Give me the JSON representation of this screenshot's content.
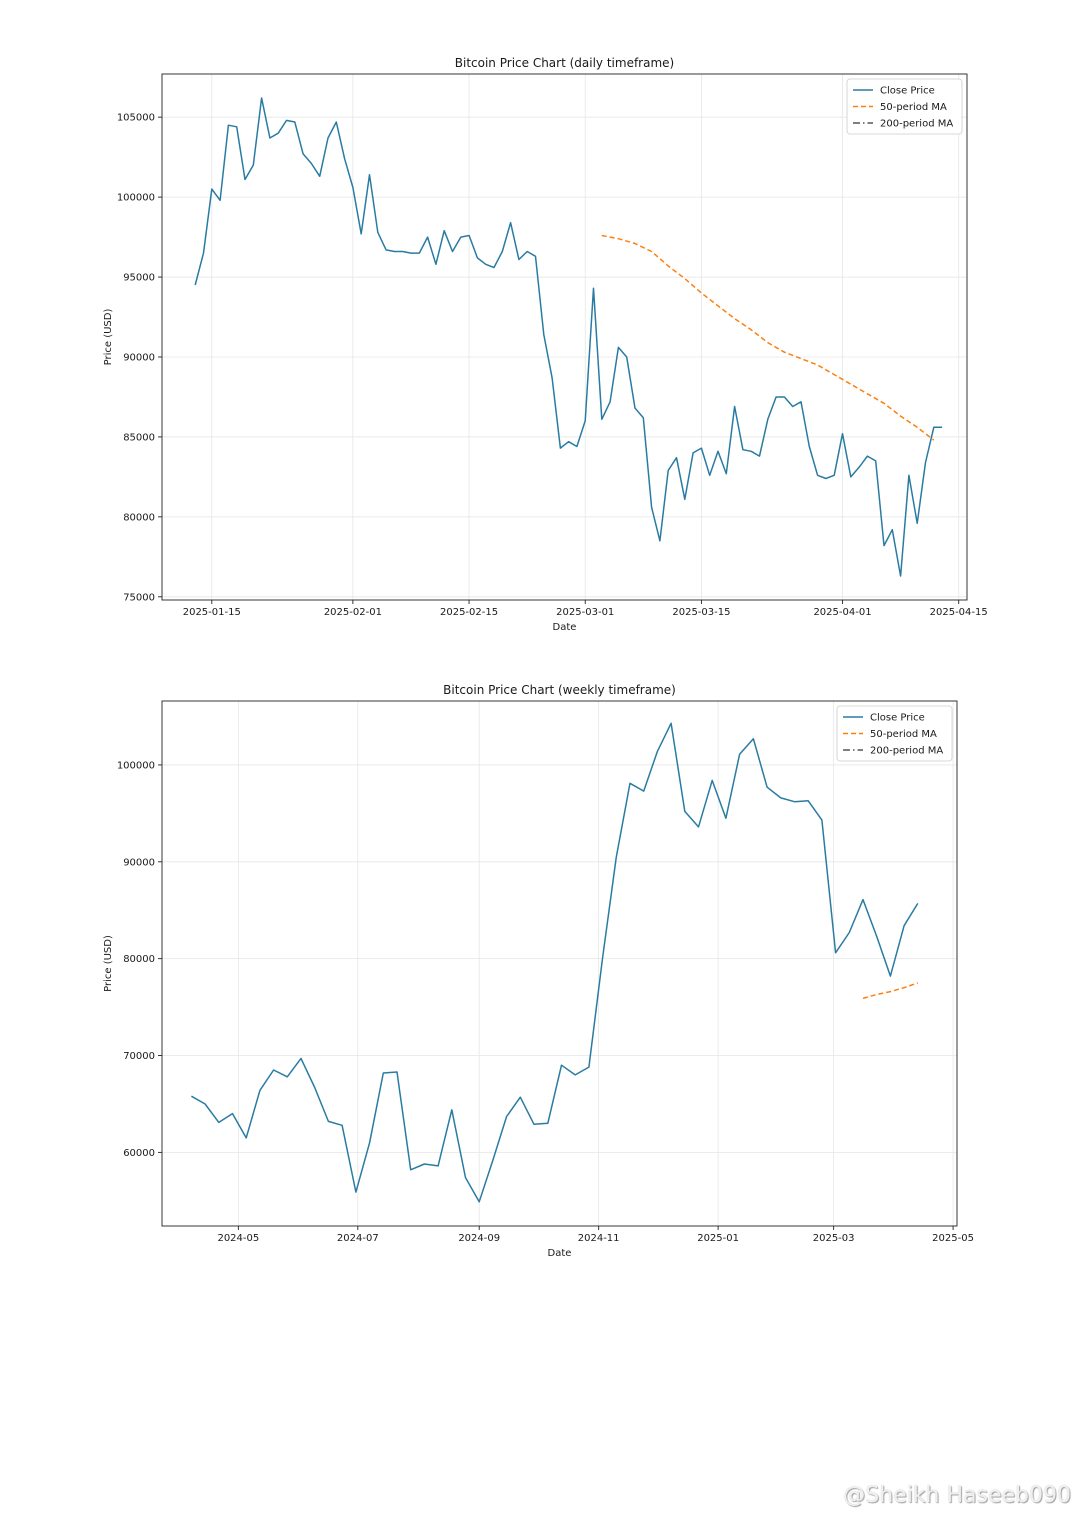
{
  "watermark": "@Sheikh Haseeb090",
  "legend_labels": [
    "Close Price",
    "50-period MA",
    "200-period MA"
  ],
  "colors": {
    "close": "#2a7ba2",
    "ma50": "#ff7f0e",
    "ma200": "#555555",
    "grid": "#e6e6e6"
  },
  "chart_data": [
    {
      "type": "line",
      "title": "Bitcoin Price Chart (daily timeframe)",
      "xlabel": "Date",
      "ylabel": "Price (USD)",
      "grid": true,
      "legend_position": "top-right",
      "x_type": "date",
      "xlim": [
        "2025-01-09",
        "2025-04-16"
      ],
      "ylim": [
        74800,
        107700
      ],
      "xticks": [
        "2025-01-15",
        "2025-02-01",
        "2025-02-15",
        "2025-03-01",
        "2025-03-15",
        "2025-04-01",
        "2025-04-15"
      ],
      "yticks": [
        75000,
        80000,
        85000,
        90000,
        95000,
        100000,
        105000
      ],
      "series": [
        {
          "name": "Close Price",
          "style": "solid",
          "x": [
            "2025-01-13",
            "2025-01-14",
            "2025-01-15",
            "2025-01-16",
            "2025-01-17",
            "2025-01-18",
            "2025-01-19",
            "2025-01-20",
            "2025-01-21",
            "2025-01-22",
            "2025-01-23",
            "2025-01-24",
            "2025-01-25",
            "2025-01-26",
            "2025-01-27",
            "2025-01-28",
            "2025-01-29",
            "2025-01-30",
            "2025-01-31",
            "2025-02-01",
            "2025-02-02",
            "2025-02-03",
            "2025-02-04",
            "2025-02-05",
            "2025-02-06",
            "2025-02-07",
            "2025-02-08",
            "2025-02-09",
            "2025-02-10",
            "2025-02-11",
            "2025-02-12",
            "2025-02-13",
            "2025-02-14",
            "2025-02-15",
            "2025-02-16",
            "2025-02-17",
            "2025-02-18",
            "2025-02-19",
            "2025-02-20",
            "2025-02-21",
            "2025-02-22",
            "2025-02-23",
            "2025-02-24",
            "2025-02-25",
            "2025-02-26",
            "2025-02-27",
            "2025-02-28",
            "2025-03-01",
            "2025-03-02",
            "2025-03-03",
            "2025-03-04",
            "2025-03-05",
            "2025-03-06",
            "2025-03-07",
            "2025-03-08",
            "2025-03-09",
            "2025-03-10",
            "2025-03-11",
            "2025-03-12",
            "2025-03-13",
            "2025-03-14",
            "2025-03-15",
            "2025-03-16",
            "2025-03-17",
            "2025-03-18",
            "2025-03-19",
            "2025-03-20",
            "2025-03-21",
            "2025-03-22",
            "2025-03-23",
            "2025-03-24",
            "2025-03-25",
            "2025-03-26",
            "2025-03-27",
            "2025-03-28",
            "2025-03-29",
            "2025-03-30",
            "2025-03-31",
            "2025-04-01",
            "2025-04-02",
            "2025-04-03",
            "2025-04-04",
            "2025-04-05",
            "2025-04-06",
            "2025-04-07",
            "2025-04-08",
            "2025-04-09",
            "2025-04-10",
            "2025-04-11",
            "2025-04-12",
            "2025-04-13"
          ],
          "values": [
            94500,
            96500,
            100500,
            99800,
            104500,
            104400,
            101100,
            102000,
            106200,
            103700,
            104000,
            104800,
            104700,
            102700,
            102100,
            101300,
            103700,
            104700,
            102400,
            100600,
            97700,
            101400,
            97800,
            96700,
            96600,
            96600,
            96500,
            96500,
            97500,
            95800,
            97900,
            96600,
            97500,
            97600,
            96200,
            95800,
            95600,
            96600,
            98400,
            96100,
            96600,
            96300,
            91400,
            88700,
            84300,
            84700,
            84400,
            86000,
            94300,
            86100,
            87200,
            90600,
            90000,
            86800,
            86200,
            80600,
            78500,
            82900,
            83700,
            81100,
            84000,
            84300,
            82600,
            84100,
            82700,
            86900,
            84200,
            84100,
            83800,
            86100,
            87500,
            87500,
            86900,
            87200,
            84400,
            82600,
            82400,
            82600,
            85200,
            82500,
            83100,
            83800,
            83500,
            78200,
            79200,
            76300,
            82600,
            79600,
            83400,
            85600,
            85600
          ]
        },
        {
          "name": "50-period MA",
          "style": "dashed",
          "x": [
            "2025-03-03",
            "2025-03-05",
            "2025-03-07",
            "2025-03-09",
            "2025-03-11",
            "2025-03-13",
            "2025-03-15",
            "2025-03-17",
            "2025-03-19",
            "2025-03-21",
            "2025-03-23",
            "2025-03-25",
            "2025-03-27",
            "2025-03-29",
            "2025-03-31",
            "2025-04-02",
            "2025-04-04",
            "2025-04-06",
            "2025-04-08",
            "2025-04-10",
            "2025-04-12"
          ],
          "values": [
            97600,
            97400,
            97100,
            96600,
            95700,
            94900,
            94000,
            93200,
            92400,
            91700,
            90900,
            90300,
            89900,
            89500,
            88900,
            88300,
            87700,
            87100,
            86300,
            85600,
            84800
          ]
        },
        {
          "name": "200-period MA",
          "style": "dashdot",
          "x": [],
          "values": []
        }
      ]
    },
    {
      "type": "line",
      "title": "Bitcoin Price Chart (weekly timeframe)",
      "xlabel": "Date",
      "ylabel": "Price (USD)",
      "grid": true,
      "legend_position": "top-right",
      "x_type": "date",
      "xlim": [
        "2024-03-23",
        "2025-05-03"
      ],
      "ylim": [
        52400,
        106600
      ],
      "xticks": [
        "2024-05",
        "2024-07",
        "2024-09",
        "2024-11",
        "2025-01",
        "2025-03",
        "2025-05"
      ],
      "yticks": [
        60000,
        70000,
        80000,
        90000,
        100000
      ],
      "series": [
        {
          "name": "Close Price",
          "style": "solid",
          "x": [
            "2024-04-07",
            "2024-04-14",
            "2024-04-21",
            "2024-04-28",
            "2024-05-05",
            "2024-05-12",
            "2024-05-19",
            "2024-05-26",
            "2024-06-02",
            "2024-06-09",
            "2024-06-16",
            "2024-06-23",
            "2024-06-30",
            "2024-07-07",
            "2024-07-14",
            "2024-07-21",
            "2024-07-28",
            "2024-08-04",
            "2024-08-11",
            "2024-08-18",
            "2024-08-25",
            "2024-09-01",
            "2024-09-08",
            "2024-09-15",
            "2024-09-22",
            "2024-09-29",
            "2024-10-06",
            "2024-10-13",
            "2024-10-20",
            "2024-10-27",
            "2024-11-03",
            "2024-11-10",
            "2024-11-17",
            "2024-11-24",
            "2024-12-01",
            "2024-12-08",
            "2024-12-15",
            "2024-12-22",
            "2024-12-29",
            "2025-01-05",
            "2025-01-12",
            "2025-01-19",
            "2025-01-26",
            "2025-02-02",
            "2025-02-09",
            "2025-02-16",
            "2025-02-23",
            "2025-03-02",
            "2025-03-09",
            "2025-03-16",
            "2025-03-23",
            "2025-03-30",
            "2025-04-06",
            "2025-04-13"
          ],
          "values": [
            65800,
            65000,
            63100,
            64000,
            61500,
            66400,
            68500,
            67800,
            69700,
            66700,
            63200,
            62800,
            55900,
            61000,
            68200,
            68300,
            58200,
            58800,
            58600,
            64400,
            57400,
            54900,
            59200,
            63700,
            65700,
            62900,
            63000,
            69000,
            68000,
            68800,
            80100,
            90500,
            98100,
            97300,
            101400,
            104300,
            95200,
            93600,
            98400,
            94500,
            101100,
            102700,
            97700,
            96600,
            96200,
            96300,
            94300,
            80600,
            82700,
            86100,
            82300,
            78200,
            83400,
            85700
          ]
        },
        {
          "name": "50-period MA",
          "style": "dashed",
          "x": [
            "2025-03-16",
            "2025-03-23",
            "2025-03-30",
            "2025-04-06",
            "2025-04-13"
          ],
          "values": [
            75900,
            76300,
            76600,
            77000,
            77500
          ]
        },
        {
          "name": "200-period MA",
          "style": "dashdot",
          "x": [],
          "values": []
        }
      ]
    }
  ]
}
